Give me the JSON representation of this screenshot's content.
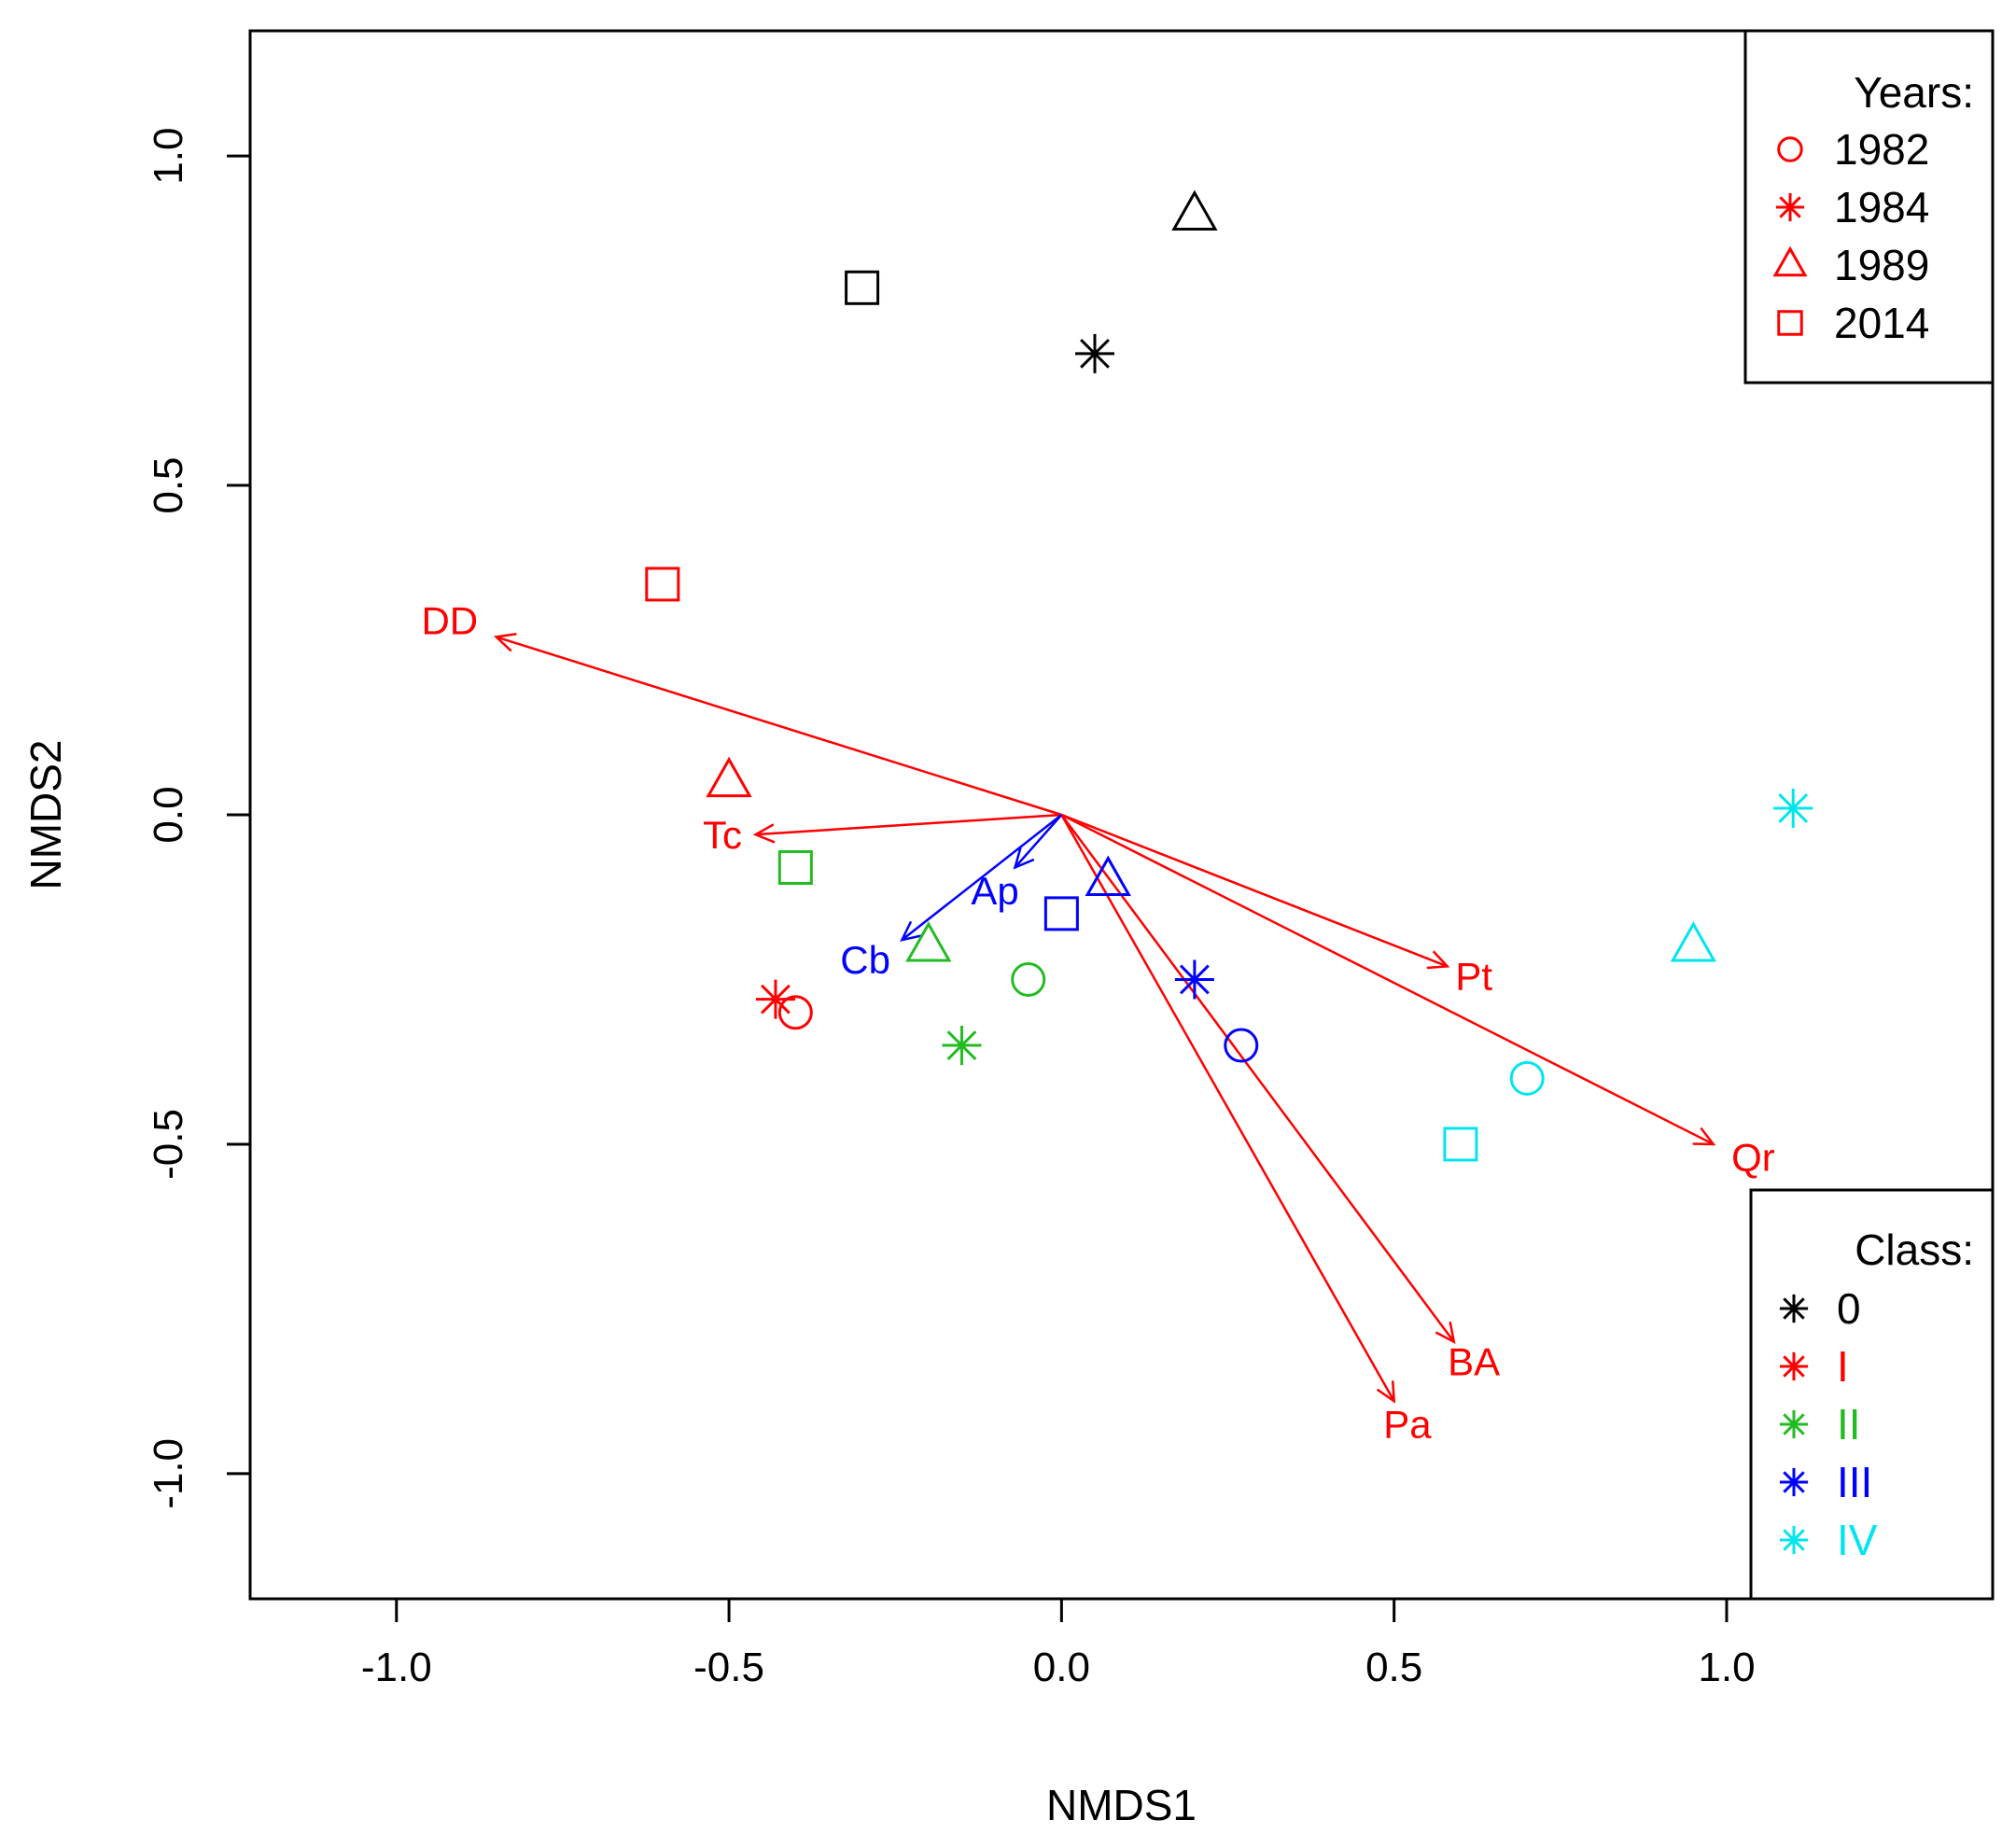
{
  "chart_data": {
    "type": "scatter",
    "title": "",
    "xlabel": "NMDS1",
    "ylabel": "NMDS2",
    "xlim": [
      -1.22,
      1.4
    ],
    "ylim": [
      -1.19,
      1.19
    ],
    "xticks": [
      {
        "value": -1.0,
        "label": "-1.0"
      },
      {
        "value": -0.5,
        "label": "-0.5"
      },
      {
        "value": 0.0,
        "label": "0.0"
      },
      {
        "value": 0.5,
        "label": "0.5"
      },
      {
        "value": 1.0,
        "label": "1.0"
      }
    ],
    "yticks": [
      {
        "value": -1.0,
        "label": "-1.0"
      },
      {
        "value": -0.5,
        "label": "-0.5"
      },
      {
        "value": 0.0,
        "label": "0.0"
      },
      {
        "value": 0.5,
        "label": "0.5"
      },
      {
        "value": 1.0,
        "label": "1.0"
      }
    ],
    "years": [
      {
        "year": "1982",
        "shape": "circle"
      },
      {
        "year": "1984",
        "shape": "asterisk"
      },
      {
        "year": "1989",
        "shape": "triangle"
      },
      {
        "year": "2014",
        "shape": "square"
      }
    ],
    "classes": [
      {
        "class": "0",
        "color": "#000000"
      },
      {
        "class": "I",
        "color": "#ff0000"
      },
      {
        "class": "II",
        "color": "#22bb22"
      },
      {
        "class": "III",
        "color": "#0000ff"
      },
      {
        "class": "IV",
        "color": "#00e5ee"
      }
    ],
    "points": [
      {
        "class": "0",
        "year": "1984",
        "x": 0.05,
        "y": 0.7
      },
      {
        "class": "0",
        "year": "1989",
        "x": 0.2,
        "y": 0.91
      },
      {
        "class": "0",
        "year": "2014",
        "x": -0.3,
        "y": 0.8
      },
      {
        "class": "I",
        "year": "1982",
        "x": -0.4,
        "y": -0.3
      },
      {
        "class": "I",
        "year": "1984",
        "x": -0.43,
        "y": -0.28
      },
      {
        "class": "I",
        "year": "1989",
        "x": -0.5,
        "y": 0.05
      },
      {
        "class": "I",
        "year": "2014",
        "x": -0.6,
        "y": 0.35
      },
      {
        "class": "II",
        "year": "1982",
        "x": -0.05,
        "y": -0.25
      },
      {
        "class": "II",
        "year": "1984",
        "x": -0.15,
        "y": -0.35
      },
      {
        "class": "II",
        "year": "1989",
        "x": -0.2,
        "y": -0.2
      },
      {
        "class": "II",
        "year": "2014",
        "x": -0.4,
        "y": -0.08
      },
      {
        "class": "III",
        "year": "1982",
        "x": 0.27,
        "y": -0.35
      },
      {
        "class": "III",
        "year": "1984",
        "x": 0.2,
        "y": -0.25
      },
      {
        "class": "III",
        "year": "1989",
        "x": 0.07,
        "y": -0.1
      },
      {
        "class": "III",
        "year": "2014",
        "x": 0.0,
        "y": -0.15
      },
      {
        "class": "IV",
        "year": "1982",
        "x": 0.7,
        "y": -0.4
      },
      {
        "class": "IV",
        "year": "1984",
        "x": 1.1,
        "y": 0.01
      },
      {
        "class": "IV",
        "year": "1989",
        "x": 0.95,
        "y": -0.2
      },
      {
        "class": "IV",
        "year": "2014",
        "x": 0.6,
        "y": -0.5
      }
    ],
    "vectors": [
      {
        "label": "DD",
        "x": -0.85,
        "y": 0.27,
        "color": "#ff0000",
        "label_x": -0.92,
        "label_y": 0.29
      },
      {
        "label": "Tc",
        "x": -0.46,
        "y": -0.03,
        "color": "#ff0000",
        "label_x": -0.51,
        "label_y": -0.035
      },
      {
        "label": "Pt",
        "x": 0.58,
        "y": -0.23,
        "color": "#ff0000",
        "label_x": 0.62,
        "label_y": -0.25
      },
      {
        "label": "Qr",
        "x": 0.98,
        "y": -0.5,
        "color": "#ff0000",
        "label_x": 1.04,
        "label_y": -0.525
      },
      {
        "label": "BA",
        "x": 0.59,
        "y": -0.8,
        "color": "#ff0000",
        "label_x": 0.62,
        "label_y": -0.835
      },
      {
        "label": "Pa",
        "x": 0.5,
        "y": -0.89,
        "color": "#ff0000",
        "label_x": 0.52,
        "label_y": -0.93
      },
      {
        "label": "Ap",
        "x": -0.07,
        "y": -0.08,
        "color": "#0000ff",
        "label_x": -0.1,
        "label_y": -0.12
      },
      {
        "label": "Cb",
        "x": -0.24,
        "y": -0.19,
        "color": "#0000ff",
        "label_x": -0.295,
        "label_y": -0.225
      }
    ],
    "legend_years": {
      "title": "Years:",
      "placement": "top-right",
      "color": "#ff0000",
      "entries": [
        {
          "label": "1982",
          "shape": "circle"
        },
        {
          "label": "1984",
          "shape": "asterisk"
        },
        {
          "label": "1989",
          "shape": "triangle"
        },
        {
          "label": "2014",
          "shape": "square"
        }
      ]
    },
    "legend_classes": {
      "title": "Class:",
      "placement": "bottom-right",
      "shape": "asterisk",
      "entries": [
        {
          "label": "0",
          "color": "#000000"
        },
        {
          "label": "I",
          "color": "#ff0000"
        },
        {
          "label": "II",
          "color": "#22bb22"
        },
        {
          "label": "III",
          "color": "#0000ff"
        },
        {
          "label": "IV",
          "color": "#00e5ee"
        }
      ]
    }
  }
}
